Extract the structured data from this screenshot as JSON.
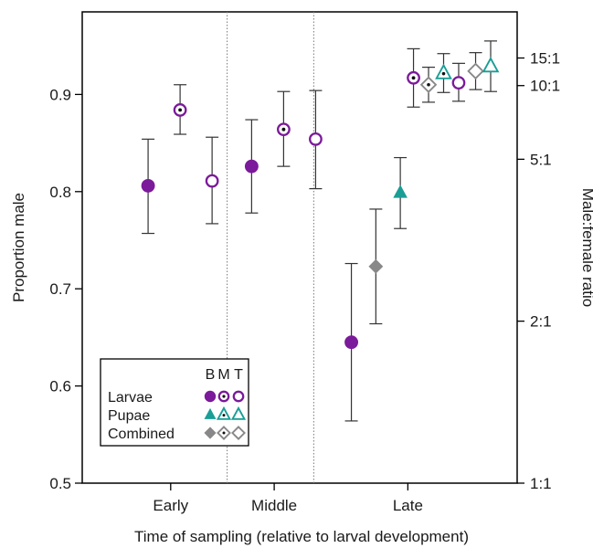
{
  "chart_data": {
    "type": "scatter",
    "xlabel": "Time of sampling (relative to larval development)",
    "ylabel": "Proportion male",
    "y2label": "Male:female ratio",
    "ylim": [
      0.5,
      0.95
    ],
    "xlim": [
      0,
      10
    ],
    "yticks": [
      {
        "value": 0.5,
        "label": "0.5"
      },
      {
        "value": 0.6,
        "label": "0.6"
      },
      {
        "value": 0.7,
        "label": "0.7"
      },
      {
        "value": 0.8,
        "label": "0.8"
      },
      {
        "value": 0.9,
        "label": "0.9"
      }
    ],
    "y2ticks": [
      {
        "value": 0.5,
        "label": "1:1"
      },
      {
        "value": 0.6667,
        "label": "2:1"
      },
      {
        "value": 0.8333,
        "label": "5:1"
      },
      {
        "value": 0.9091,
        "label": "10:1"
      },
      {
        "value": 0.9375,
        "label": "15:1"
      }
    ],
    "groups": [
      {
        "label": "Early",
        "x_center": 1.5
      },
      {
        "label": "Middle",
        "x_center": 4.25
      },
      {
        "label": "Late",
        "x_center": 7.8
      }
    ],
    "separators": [
      3.0,
      5.3
    ],
    "colors": {
      "larvae": "#7b1a9a",
      "pupae": "#1a9e96",
      "combined": "#888888",
      "errorbar": "#333333"
    },
    "legend": {
      "header": "BMT",
      "header_letters": [
        "B",
        "M",
        "T"
      ],
      "rows": [
        {
          "label": "Larvae",
          "kind": "larvae"
        },
        {
          "label": "Pupae",
          "kind": "pupae"
        },
        {
          "label": "Combined",
          "kind": "combined"
        }
      ],
      "placement": "bottom-left"
    },
    "series": [
      {
        "kind": "larvae",
        "marker": "B",
        "x": 0.9,
        "y": 0.806,
        "lo": 0.757,
        "hi": 0.854
      },
      {
        "kind": "larvae",
        "marker": "M",
        "x": 1.75,
        "y": 0.884,
        "lo": 0.859,
        "hi": 0.91
      },
      {
        "kind": "larvae",
        "marker": "T",
        "x": 2.6,
        "y": 0.811,
        "lo": 0.767,
        "hi": 0.856
      },
      {
        "kind": "larvae",
        "marker": "B",
        "x": 3.65,
        "y": 0.826,
        "lo": 0.778,
        "hi": 0.874
      },
      {
        "kind": "larvae",
        "marker": "M",
        "x": 4.5,
        "y": 0.864,
        "lo": 0.826,
        "hi": 0.903
      },
      {
        "kind": "larvae",
        "marker": "T",
        "x": 5.35,
        "y": 0.854,
        "lo": 0.803,
        "hi": 0.904
      },
      {
        "kind": "larvae",
        "marker": "B",
        "x": 6.3,
        "y": 0.645,
        "lo": 0.564,
        "hi": 0.726
      },
      {
        "kind": "combined",
        "marker": "B",
        "x": 6.95,
        "y": 0.723,
        "lo": 0.664,
        "hi": 0.782
      },
      {
        "kind": "pupae",
        "marker": "B",
        "x": 7.6,
        "y": 0.799,
        "lo": 0.762,
        "hi": 0.835
      },
      {
        "kind": "larvae",
        "marker": "M",
        "x": 7.95,
        "y": 0.917,
        "lo": 0.887,
        "hi": 0.947
      },
      {
        "kind": "combined",
        "marker": "M",
        "x": 8.35,
        "y": 0.91,
        "lo": 0.892,
        "hi": 0.928
      },
      {
        "kind": "pupae",
        "marker": "M",
        "x": 8.75,
        "y": 0.922,
        "lo": 0.902,
        "hi": 0.942
      },
      {
        "kind": "larvae",
        "marker": "T",
        "x": 9.15,
        "y": 0.912,
        "lo": 0.893,
        "hi": 0.932
      },
      {
        "kind": "combined",
        "marker": "T",
        "x": 9.6,
        "y": 0.924,
        "lo": 0.905,
        "hi": 0.943
      },
      {
        "kind": "pupae",
        "marker": "T",
        "x": 10.0,
        "y": 0.929,
        "lo": 0.903,
        "hi": 0.955
      }
    ]
  }
}
